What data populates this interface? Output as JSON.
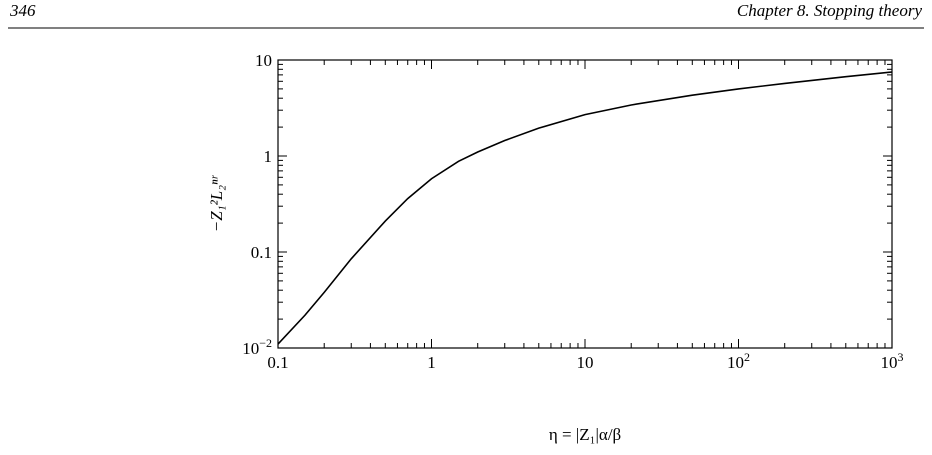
{
  "header": {
    "page_number": "346",
    "chapter": "Chapter 8.  Stopping theory"
  },
  "chart_data": {
    "type": "line",
    "xlabel": "η = |Z₁|α/β",
    "ylabel": "−Z₁²L₂ⁿʳ",
    "x": [
      0.1,
      0.15,
      0.2,
      0.3,
      0.5,
      0.7,
      1,
      1.5,
      2,
      3,
      5,
      10,
      20,
      50,
      100,
      200,
      500,
      1000
    ],
    "series": [
      {
        "color": "#000000",
        "values": [
          0.011,
          0.022,
          0.038,
          0.085,
          0.21,
          0.36,
          0.58,
          0.88,
          1.1,
          1.45,
          1.95,
          2.7,
          3.4,
          4.3,
          5.0,
          5.7,
          6.7,
          7.5
        ]
      }
    ],
    "xscale": "log",
    "yscale": "log",
    "xlim": [
      0.1,
      1000
    ],
    "ylim": [
      0.01,
      10
    ],
    "xticks": [
      0.1,
      1,
      10,
      {
        "value": 100,
        "label": "10",
        "exponent": "2"
      },
      {
        "value": 1000,
        "label": "10",
        "exponent": "3"
      }
    ],
    "yticks": [
      {
        "value": 0.01,
        "label": "10",
        "exponent": "−2"
      },
      0.1,
      1,
      10
    ]
  }
}
